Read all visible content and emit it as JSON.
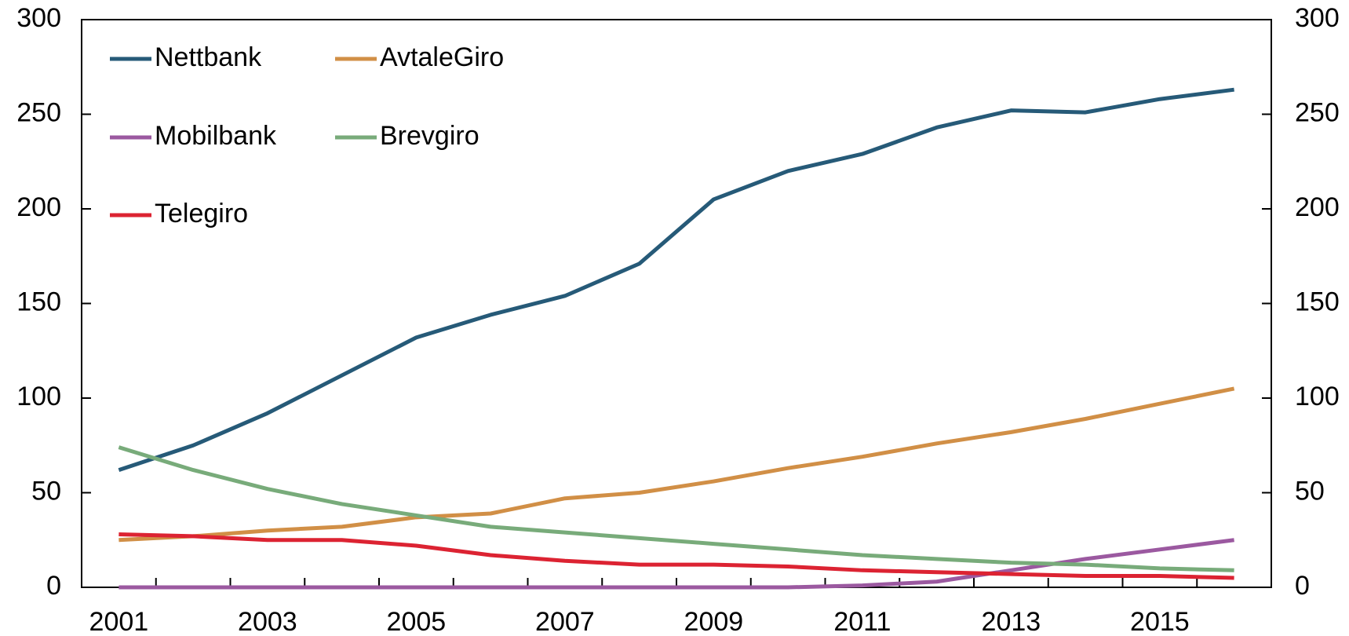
{
  "chart_data": {
    "type": "line",
    "categories": [
      "2001",
      null,
      "2003",
      null,
      "2005",
      null,
      "2007",
      null,
      "2009",
      null,
      "2011",
      null,
      "2013",
      null,
      "2015",
      null
    ],
    "series": [
      {
        "name": "Nettbank",
        "color": "#265a78",
        "values": [
          62,
          75,
          92,
          112,
          132,
          144,
          154,
          171,
          205,
          220,
          229,
          243,
          252,
          251,
          258,
          263
        ]
      },
      {
        "name": "AvtaleGiro",
        "color": "#d18f46",
        "values": [
          25,
          27,
          30,
          32,
          37,
          39,
          47,
          50,
          56,
          63,
          69,
          76,
          82,
          89,
          97,
          105
        ]
      },
      {
        "name": "Mobilbank",
        "color": "#9b59a0",
        "values": [
          0,
          0,
          0,
          0,
          0,
          0,
          0,
          0,
          0,
          0,
          1,
          3,
          9,
          15,
          20,
          25
        ]
      },
      {
        "name": "Brevgiro",
        "color": "#78ab7a",
        "values": [
          74,
          62,
          52,
          44,
          38,
          32,
          29,
          26,
          23,
          20,
          17,
          15,
          13,
          12,
          10,
          9
        ]
      },
      {
        "name": "Telegiro",
        "color": "#dc2332",
        "values": [
          28,
          27,
          25,
          25,
          22,
          17,
          14,
          12,
          12,
          11,
          9,
          8,
          7,
          6,
          6,
          5
        ]
      }
    ],
    "ylim": [
      0,
      300
    ],
    "yticks": [
      0,
      50,
      100,
      150,
      200,
      250,
      300
    ],
    "y2lim": [
      0,
      300
    ],
    "y2ticks": [
      0,
      50,
      100,
      150,
      200,
      250,
      300
    ],
    "grid": false,
    "legend": "upper left"
  }
}
